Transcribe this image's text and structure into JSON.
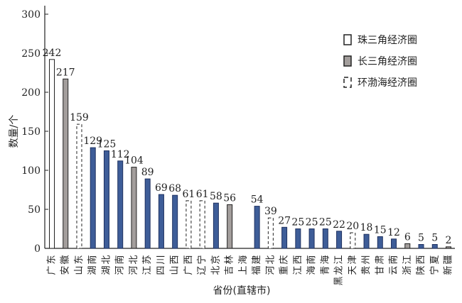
{
  "chart_data": {
    "type": "bar",
    "xlabel": "省份(直辖市)",
    "ylabel": "数量/个",
    "ylim": [
      0,
      300
    ],
    "yticks": [
      0,
      50,
      100,
      150,
      200,
      250,
      300
    ],
    "categories": [
      "广东",
      "安徽",
      "山东",
      "湖南",
      "湖北",
      "河南",
      "河北",
      "江苏",
      "四川",
      "山西",
      "广西",
      "辽宁",
      "北京",
      "吉林",
      "上海",
      "福建",
      "河北",
      "重庆",
      "江西",
      "海南",
      "青海",
      "黑龙江",
      "天津",
      "贵州",
      "甘肃",
      "云南",
      "浙江",
      "陕西",
      "宁夏",
      "新疆"
    ],
    "values": [
      242,
      217,
      159,
      129,
      125,
      112,
      104,
      89,
      69,
      68,
      61,
      61,
      58,
      56,
      null,
      54,
      39,
      27,
      25,
      25,
      25,
      22,
      20,
      18,
      15,
      12,
      6,
      5,
      5,
      2
    ],
    "groups": [
      "pearl",
      "yangtze",
      "bohai",
      "other",
      "other",
      "other",
      "yangtze",
      "other",
      "other",
      "other",
      "bohai",
      "bohai",
      "other",
      "yangtze",
      "other",
      "other",
      "bohai",
      "other",
      "other",
      "other",
      "other",
      "other",
      "bohai",
      "other",
      "other",
      "other",
      "yangtze",
      "other",
      "other",
      "yangtze"
    ],
    "legend": [
      {
        "key": "pearl",
        "label": "珠三角经济圈"
      },
      {
        "key": "yangtze",
        "label": "长三角经济圈"
      },
      {
        "key": "bohai",
        "label": "环渤海经济圈"
      }
    ],
    "legend_position": "top-right",
    "colors": {
      "pearl": "#ffffff",
      "yangtze": "#a39e9c",
      "bohai": "#ffffff",
      "other": "#3e5d98"
    }
  }
}
